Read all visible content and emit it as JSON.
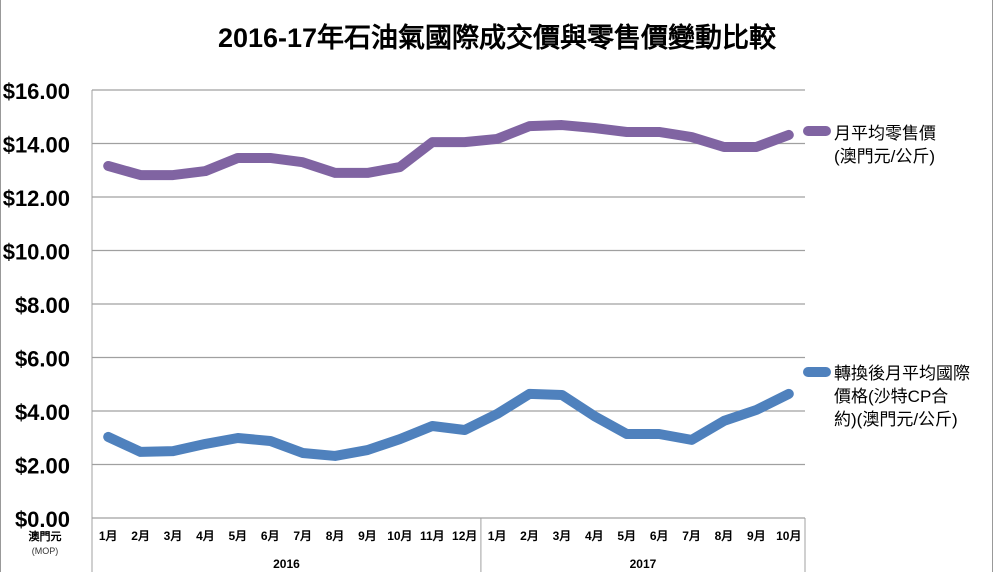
{
  "chart_data": {
    "type": "line",
    "title": "2016-17年石油氣國際成交價與零售價變動比較",
    "ylabel": "澳門元",
    "ylabel_sub": "(MOP)",
    "ylim": [
      0,
      16
    ],
    "yticks": [
      "$0.00",
      "$2.00",
      "$4.00",
      "$6.00",
      "$8.00",
      "$10.00",
      "$12.00",
      "$14.00",
      "$16.00"
    ],
    "grid": true,
    "legend_placement": "right",
    "categories": [
      "1月",
      "2月",
      "3月",
      "4月",
      "5月",
      "6月",
      "7月",
      "8月",
      "9月",
      "10月",
      "11月",
      "12月",
      "1月",
      "2月",
      "3月",
      "4月",
      "5月",
      "6月",
      "7月",
      "8月",
      "9月",
      "10月"
    ],
    "groups": [
      {
        "label": "2016",
        "count": 12
      },
      {
        "label": "2017",
        "count": 10
      }
    ],
    "series": [
      {
        "name": "月平均零售價(澳門元/公斤)",
        "color": "#8064A2",
        "values": [
          13.16,
          12.82,
          12.82,
          12.97,
          13.46,
          13.46,
          13.3,
          12.9,
          12.9,
          13.12,
          14.05,
          14.05,
          14.17,
          14.65,
          14.69,
          14.58,
          14.43,
          14.43,
          14.24,
          13.87,
          13.87,
          14.32
        ]
      },
      {
        "name": "轉換後月平均國際價格(沙特CP合約)(澳門元/公斤)",
        "color": "#4F81BD",
        "values": [
          3.03,
          2.47,
          2.5,
          2.77,
          2.99,
          2.88,
          2.43,
          2.32,
          2.54,
          2.95,
          3.44,
          3.29,
          3.89,
          4.64,
          4.6,
          3.81,
          3.14,
          3.14,
          2.92,
          3.63,
          4.04,
          4.64
        ]
      }
    ]
  },
  "legend": {
    "purple_lines": [
      "月平均零售價",
      "(澳門元/公斤)"
    ],
    "blue_lines": [
      "轉換後月平均國際",
      "價格(沙特CP合",
      "約)(澳門元/公斤)"
    ]
  }
}
